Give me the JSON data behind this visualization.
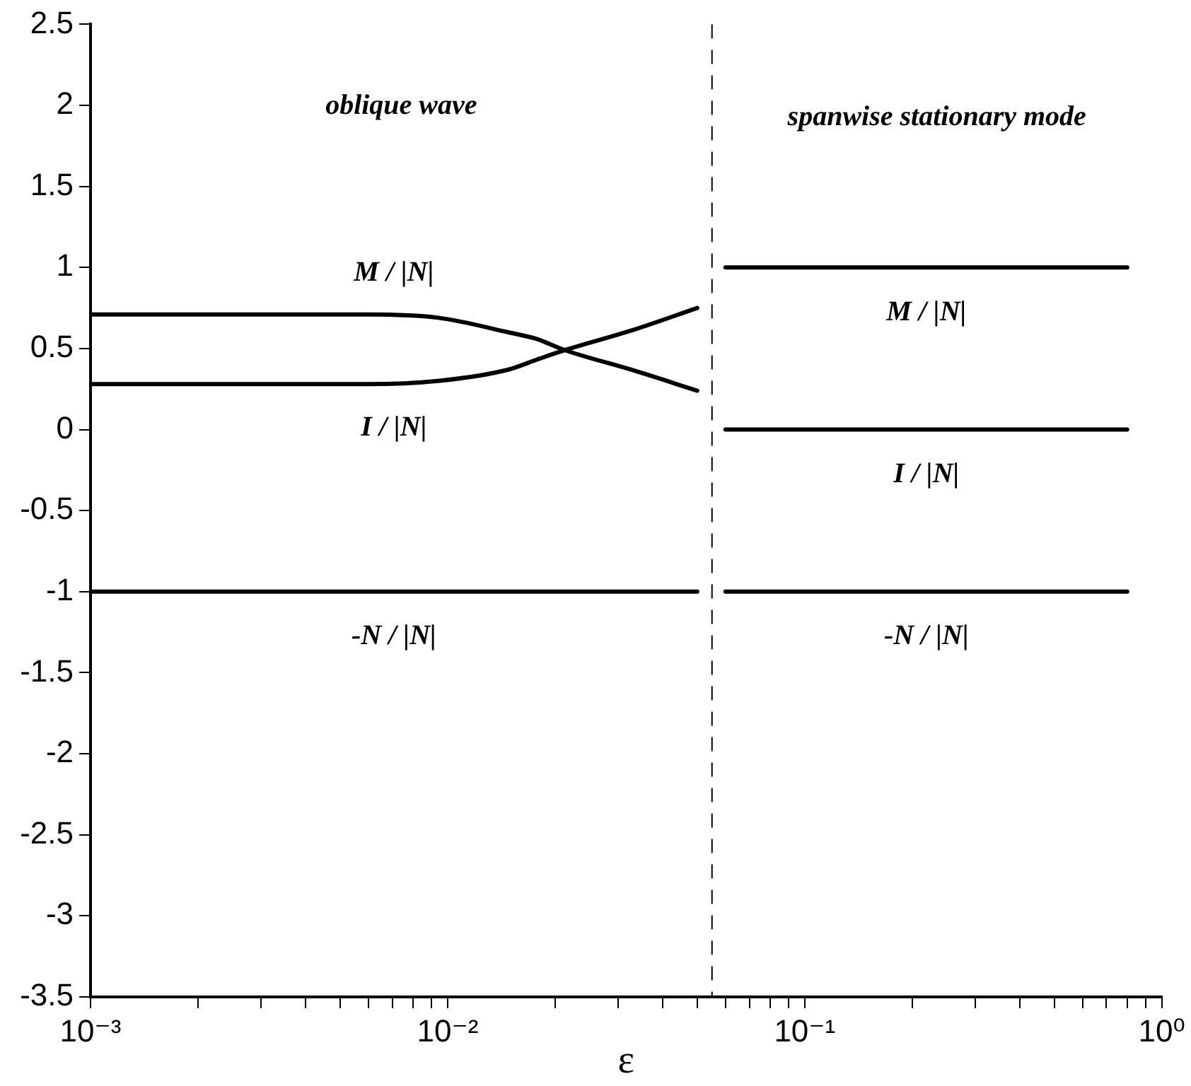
{
  "chart_data": {
    "type": "line",
    "xlabel": "ε",
    "log": "x",
    "grid": false,
    "legend": false,
    "marker": "none",
    "line_style": "solid",
    "xlim": [
      0.001,
      1
    ],
    "xticks": [
      {
        "value": 0.001,
        "label": "10⁻³"
      },
      {
        "value": 0.002,
        "label": null
      },
      {
        "value": 0.003,
        "label": null
      },
      {
        "value": 0.004,
        "label": null
      },
      {
        "value": 0.005,
        "label": null
      },
      {
        "value": 0.006,
        "label": null
      },
      {
        "value": 0.007,
        "label": null
      },
      {
        "value": 0.008,
        "label": null
      },
      {
        "value": 0.009,
        "label": null
      },
      {
        "value": 0.01,
        "label": "10⁻²"
      },
      {
        "value": 0.02,
        "label": null
      },
      {
        "value": 0.03,
        "label": null
      },
      {
        "value": 0.04,
        "label": null
      },
      {
        "value": 0.05,
        "label": null
      },
      {
        "value": 0.06,
        "label": null
      },
      {
        "value": 0.07,
        "label": null
      },
      {
        "value": 0.08,
        "label": null
      },
      {
        "value": 0.09,
        "label": null
      },
      {
        "value": 0.1,
        "label": "10⁻¹"
      },
      {
        "value": 0.2,
        "label": null
      },
      {
        "value": 0.3,
        "label": null
      },
      {
        "value": 0.4,
        "label": null
      },
      {
        "value": 0.5,
        "label": null
      },
      {
        "value": 0.6,
        "label": null
      },
      {
        "value": 0.7,
        "label": null
      },
      {
        "value": 0.8,
        "label": null
      },
      {
        "value": 0.9,
        "label": null
      },
      {
        "value": 1,
        "label": "10⁰"
      }
    ],
    "ylim": [
      -3.5,
      2.5
    ],
    "yticks": [
      -3.5,
      -3,
      -2.5,
      -2,
      -1.5,
      -1,
      -0.5,
      0,
      0.5,
      1,
      1.5,
      2,
      2.5
    ],
    "series": [
      {
        "name": "M / |N|",
        "color": "#000000",
        "x": [
          0.001,
          0.003,
          0.0059,
          0.0094,
          0.0148,
          0.0177,
          0.0213,
          0.0326,
          0.05
        ],
        "values": [
          0.71,
          0.71,
          0.71,
          0.69,
          0.6,
          0.56,
          0.49,
          0.37,
          0.24
        ]
      },
      {
        "name": "I / |N|",
        "color": "#000000",
        "x": [
          0.001,
          0.003,
          0.0059,
          0.0094,
          0.0148,
          0.0177,
          0.0213,
          0.0326,
          0.05
        ],
        "values": [
          0.28,
          0.28,
          0.28,
          0.3,
          0.37,
          0.43,
          0.49,
          0.61,
          0.75
        ]
      },
      {
        "name": "-N / |N|",
        "color": "#000000",
        "x": [
          0.001,
          0.05
        ],
        "values": [
          -1,
          -1
        ]
      },
      {
        "name": "M / |N|",
        "color": "#000000",
        "x": [
          0.06,
          0.8
        ],
        "values": [
          1,
          1
        ]
      },
      {
        "name": "I / |N|",
        "color": "#000000",
        "x": [
          0.06,
          0.8
        ],
        "values": [
          0,
          0
        ]
      },
      {
        "name": "-N / |N|",
        "color": "#000000",
        "x": [
          0.06,
          0.8
        ],
        "values": [
          -1,
          -1
        ]
      }
    ],
    "ref_lines": [
      {
        "axis": "x",
        "value": 0.055,
        "color": "#000000",
        "line_style": "dashed"
      }
    ],
    "annotations": [
      "oblique wave",
      "spanwise stationary mode"
    ]
  }
}
